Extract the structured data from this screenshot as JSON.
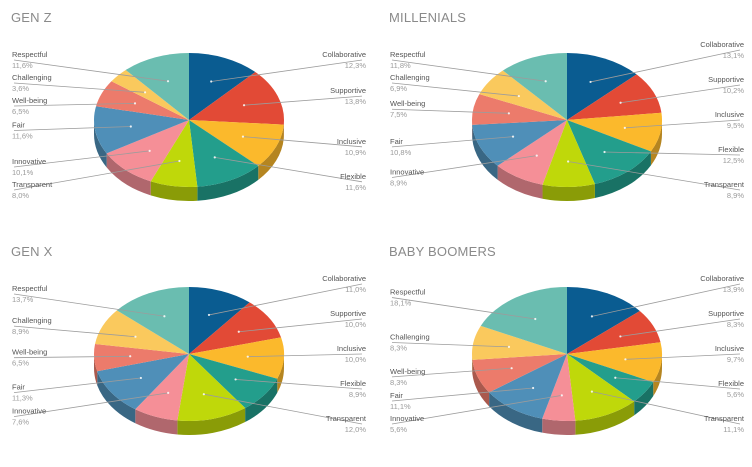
{
  "colors": [
    "#0a5c91",
    "#e24a36",
    "#fbb92c",
    "#239e8c",
    "#bfd80a",
    "#f58f97",
    "#4f8fb8",
    "#ec7b6b",
    "#fac95d",
    "#6abdb0"
  ],
  "chart_data": [
    {
      "type": "pie",
      "title": "GEN Z",
      "categories": [
        "Collaborative",
        "Supportive",
        "Inclusive",
        "Flexible",
        "Transparent",
        "Innovative",
        "Fair",
        "Well-being",
        "Challenging",
        "Respectful"
      ],
      "values": [
        12.3,
        13.8,
        10.9,
        11.6,
        8.0,
        10.1,
        11.6,
        6.5,
        3.6,
        11.6
      ],
      "labels": [
        "12,3%",
        "13,8%",
        "10,9%",
        "11,6%",
        "8,0%",
        "10,1%",
        "11,6%",
        "6,5%",
        "3,6%",
        "11,6%"
      ]
    },
    {
      "type": "pie",
      "title": "MILLENIALS",
      "categories": [
        "Collaborative",
        "Supportive",
        "Inclusive",
        "Flexible",
        "Transparent",
        "Innovative",
        "Fair",
        "Well-being",
        "Challenging",
        "Respectful"
      ],
      "values": [
        13.1,
        10.2,
        9.5,
        12.5,
        8.9,
        8.9,
        10.8,
        7.5,
        6.9,
        11.8
      ],
      "labels": [
        "13,1%",
        "10,2%",
        "9,5%",
        "12,5%",
        "8,9%",
        "8,9%",
        "10,8%",
        "7,5%",
        "6,9%",
        "11,8%"
      ]
    },
    {
      "type": "pie",
      "title": "GEN X",
      "categories": [
        "Collaborative",
        "Supportive",
        "Inclusive",
        "Flexible",
        "Transparent",
        "Innovative",
        "Fair",
        "Well-being",
        "Challenging",
        "Respectful"
      ],
      "values": [
        11.0,
        10.0,
        10.0,
        8.9,
        12.0,
        7.6,
        11.3,
        6.5,
        8.9,
        13.7
      ],
      "labels": [
        "11,0%",
        "10,0%",
        "10,0%",
        "8,9%",
        "12,0%",
        "7,6%",
        "11,3%",
        "6,5%",
        "8,9%",
        "13,7%"
      ]
    },
    {
      "type": "pie",
      "title": "BABY BOOMERS",
      "categories": [
        "Collaborative",
        "Supportive",
        "Inclusive",
        "Flexible",
        "Transparent",
        "Innovative",
        "Fair",
        "Well-being",
        "Challenging",
        "Respectful"
      ],
      "values": [
        13.9,
        8.3,
        9.7,
        5.6,
        11.1,
        5.6,
        11.1,
        8.3,
        8.3,
        18.1
      ],
      "labels": [
        "13,9%",
        "8,3%",
        "9,7%",
        "5,6%",
        "11,1%",
        "5,6%",
        "11,1%",
        "8,3%",
        "8,3%",
        "18,1%"
      ]
    }
  ]
}
